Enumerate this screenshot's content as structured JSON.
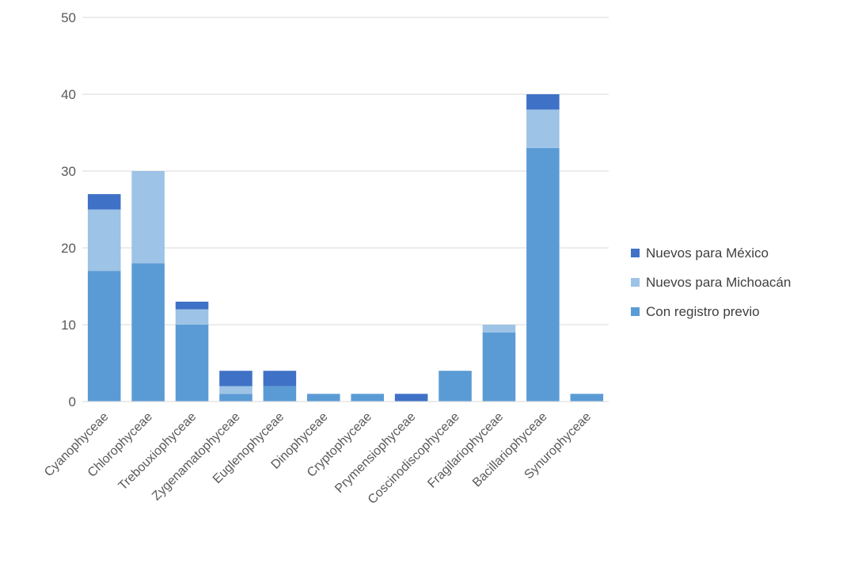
{
  "chart_data": {
    "type": "bar",
    "stacked": true,
    "title": "",
    "xlabel": "",
    "ylabel": "",
    "ylim": [
      0,
      50
    ],
    "yticks": [
      0,
      10,
      20,
      30,
      40,
      50
    ],
    "grid": true,
    "legend_position": "right",
    "categories": [
      "Cyanophyceae",
      "Chlorophyceae",
      "Trebouxiophyceae",
      "Zygenamatophyceae",
      "Euglenophyceae",
      "Dinophyceae",
      "Cryptophyceae",
      "Prymensiophyceae",
      "Coscinodiscophyceae",
      "Fragilariophyceae",
      "Bacillariophyceae",
      "Synurophyceae"
    ],
    "series": [
      {
        "name": "Con registro previo",
        "color": "#5b9bd5",
        "values": [
          17,
          18,
          10,
          1,
          2,
          1,
          1,
          0,
          4,
          9,
          33,
          1
        ]
      },
      {
        "name": "Nuevos para Michoacán",
        "color": "#9dc3e6",
        "values": [
          8,
          12,
          2,
          1,
          0,
          0,
          0,
          0,
          0,
          1,
          5,
          0
        ]
      },
      {
        "name": "Nuevos para México",
        "color": "#3f72c6",
        "values": [
          2,
          0,
          1,
          2,
          2,
          0,
          0,
          1,
          0,
          0,
          2,
          0
        ]
      }
    ],
    "legend_order": [
      "Nuevos para México",
      "Nuevos para Michoacán",
      "Con registro previo"
    ]
  }
}
